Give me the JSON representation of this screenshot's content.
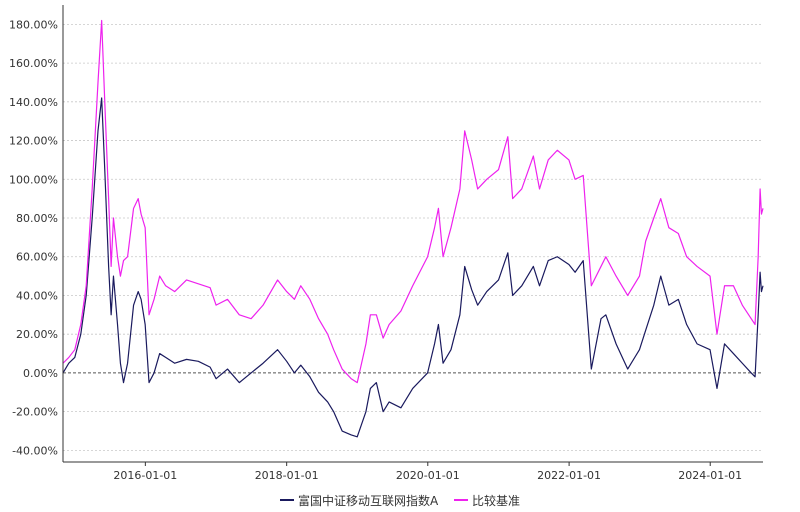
{
  "chart_data": {
    "type": "line",
    "title": "",
    "xlabel": "",
    "ylabel": "",
    "x_range": [
      "2014-11-01",
      "2024-09-30"
    ],
    "ylim": [
      -0.46,
      1.9
    ],
    "y_ticks": [
      -0.4,
      -0.2,
      0.0,
      0.2,
      0.4,
      0.6,
      0.8,
      1.0,
      1.2,
      1.4,
      1.6,
      1.8
    ],
    "y_tick_labels": [
      "-40.00%",
      "-20.00%",
      "0.00%",
      "20.00%",
      "40.00%",
      "60.00%",
      "80.00%",
      "100.00%",
      "120.00%",
      "140.00%",
      "160.00%",
      "180.00%"
    ],
    "x_ticks": [
      "2016-01-01",
      "2018-01-01",
      "2020-01-01",
      "2022-01-01",
      "2024-01-01"
    ],
    "x_tick_labels": [
      "2016-01-01",
      "2018-01-01",
      "2020-01-01",
      "2022-01-01",
      "2024-01-01"
    ],
    "grid": "horizontal dashed",
    "zero_line": "dashed",
    "legend_position": "bottom",
    "series": [
      {
        "name": "富国中证移动互联网指数A",
        "color": "#1a1a5e",
        "points": [
          [
            "2014-11-01",
            0.0
          ],
          [
            "2014-12-01",
            0.05
          ],
          [
            "2015-01-01",
            0.08
          ],
          [
            "2015-02-01",
            0.2
          ],
          [
            "2015-03-01",
            0.4
          ],
          [
            "2015-04-01",
            0.8
          ],
          [
            "2015-05-01",
            1.25
          ],
          [
            "2015-05-20",
            1.42
          ],
          [
            "2015-06-05",
            1.05
          ],
          [
            "2015-06-25",
            0.55
          ],
          [
            "2015-07-08",
            0.3
          ],
          [
            "2015-07-20",
            0.5
          ],
          [
            "2015-08-10",
            0.25
          ],
          [
            "2015-08-25",
            0.05
          ],
          [
            "2015-09-10",
            -0.05
          ],
          [
            "2015-10-01",
            0.05
          ],
          [
            "2015-11-01",
            0.35
          ],
          [
            "2015-11-25",
            0.42
          ],
          [
            "2015-12-10",
            0.38
          ],
          [
            "2015-12-31",
            0.25
          ],
          [
            "2016-01-20",
            -0.05
          ],
          [
            "2016-02-15",
            0.0
          ],
          [
            "2016-03-15",
            0.1
          ],
          [
            "2016-04-15",
            0.08
          ],
          [
            "2016-06-01",
            0.05
          ],
          [
            "2016-08-01",
            0.07
          ],
          [
            "2016-10-01",
            0.06
          ],
          [
            "2016-12-01",
            0.03
          ],
          [
            "2017-01-01",
            -0.03
          ],
          [
            "2017-03-01",
            0.02
          ],
          [
            "2017-05-01",
            -0.05
          ],
          [
            "2017-07-01",
            0.0
          ],
          [
            "2017-09-01",
            0.05
          ],
          [
            "2017-11-15",
            0.12
          ],
          [
            "2018-01-01",
            0.06
          ],
          [
            "2018-02-10",
            0.0
          ],
          [
            "2018-03-15",
            0.04
          ],
          [
            "2018-05-01",
            -0.02
          ],
          [
            "2018-06-15",
            -0.1
          ],
          [
            "2018-08-01",
            -0.15
          ],
          [
            "2018-09-01",
            -0.2
          ],
          [
            "2018-10-15",
            -0.3
          ],
          [
            "2018-12-01",
            -0.32
          ],
          [
            "2019-01-01",
            -0.33
          ],
          [
            "2019-02-15",
            -0.2
          ],
          [
            "2019-03-10",
            -0.08
          ],
          [
            "2019-04-10",
            -0.05
          ],
          [
            "2019-05-15",
            -0.2
          ],
          [
            "2019-06-15",
            -0.15
          ],
          [
            "2019-08-15",
            -0.18
          ],
          [
            "2019-10-15",
            -0.08
          ],
          [
            "2019-12-31",
            0.0
          ],
          [
            "2020-02-05",
            0.15
          ],
          [
            "2020-02-25",
            0.25
          ],
          [
            "2020-03-20",
            0.05
          ],
          [
            "2020-04-30",
            0.12
          ],
          [
            "2020-06-15",
            0.3
          ],
          [
            "2020-07-10",
            0.55
          ],
          [
            "2020-08-15",
            0.43
          ],
          [
            "2020-09-15",
            0.35
          ],
          [
            "2020-11-01",
            0.42
          ],
          [
            "2021-01-01",
            0.48
          ],
          [
            "2021-02-18",
            0.62
          ],
          [
            "2021-03-15",
            0.4
          ],
          [
            "2021-05-01",
            0.45
          ],
          [
            "2021-06-30",
            0.55
          ],
          [
            "2021-08-01",
            0.45
          ],
          [
            "2021-09-15",
            0.58
          ],
          [
            "2021-11-01",
            0.6
          ],
          [
            "2021-12-31",
            0.56
          ],
          [
            "2022-02-01",
            0.52
          ],
          [
            "2022-03-15",
            0.58
          ],
          [
            "2022-04-26",
            0.02
          ],
          [
            "2022-06-15",
            0.28
          ],
          [
            "2022-07-10",
            0.3
          ],
          [
            "2022-09-01",
            0.15
          ],
          [
            "2022-10-31",
            0.02
          ],
          [
            "2022-12-31",
            0.12
          ],
          [
            "2023-02-01",
            0.22
          ],
          [
            "2023-03-15",
            0.35
          ],
          [
            "2023-04-20",
            0.5
          ],
          [
            "2023-06-01",
            0.35
          ],
          [
            "2023-07-20",
            0.38
          ],
          [
            "2023-09-01",
            0.25
          ],
          [
            "2023-10-25",
            0.15
          ],
          [
            "2023-12-31",
            0.12
          ],
          [
            "2024-02-05",
            -0.08
          ],
          [
            "2024-03-15",
            0.15
          ],
          [
            "2024-04-30",
            0.1
          ],
          [
            "2024-06-15",
            0.05
          ],
          [
            "2024-07-31",
            0.0
          ],
          [
            "2024-08-20",
            -0.02
          ],
          [
            "2024-09-05",
            0.3
          ],
          [
            "2024-09-15",
            0.52
          ],
          [
            "2024-09-22",
            0.42
          ],
          [
            "2024-09-30",
            0.45
          ]
        ]
      },
      {
        "name": "比较基准",
        "color": "#ee22ee",
        "points": [
          [
            "2014-11-01",
            0.05
          ],
          [
            "2014-12-01",
            0.08
          ],
          [
            "2015-01-01",
            0.12
          ],
          [
            "2015-02-01",
            0.25
          ],
          [
            "2015-03-01",
            0.45
          ],
          [
            "2015-04-01",
            0.95
          ],
          [
            "2015-05-01",
            1.5
          ],
          [
            "2015-05-20",
            1.82
          ],
          [
            "2015-06-05",
            1.4
          ],
          [
            "2015-06-25",
            0.9
          ],
          [
            "2015-07-08",
            0.55
          ],
          [
            "2015-07-20",
            0.8
          ],
          [
            "2015-08-10",
            0.6
          ],
          [
            "2015-08-25",
            0.5
          ],
          [
            "2015-09-10",
            0.58
          ],
          [
            "2015-10-01",
            0.6
          ],
          [
            "2015-11-01",
            0.85
          ],
          [
            "2015-11-25",
            0.9
          ],
          [
            "2015-12-10",
            0.82
          ],
          [
            "2015-12-31",
            0.75
          ],
          [
            "2016-01-20",
            0.3
          ],
          [
            "2016-02-15",
            0.38
          ],
          [
            "2016-03-15",
            0.5
          ],
          [
            "2016-04-15",
            0.45
          ],
          [
            "2016-06-01",
            0.42
          ],
          [
            "2016-08-01",
            0.48
          ],
          [
            "2016-10-01",
            0.46
          ],
          [
            "2016-12-01",
            0.44
          ],
          [
            "2017-01-01",
            0.35
          ],
          [
            "2017-03-01",
            0.38
          ],
          [
            "2017-05-01",
            0.3
          ],
          [
            "2017-07-01",
            0.28
          ],
          [
            "2017-09-01",
            0.35
          ],
          [
            "2017-11-15",
            0.48
          ],
          [
            "2018-01-01",
            0.42
          ],
          [
            "2018-02-10",
            0.38
          ],
          [
            "2018-03-15",
            0.45
          ],
          [
            "2018-05-01",
            0.38
          ],
          [
            "2018-06-15",
            0.28
          ],
          [
            "2018-08-01",
            0.2
          ],
          [
            "2018-09-01",
            0.12
          ],
          [
            "2018-10-15",
            0.02
          ],
          [
            "2018-12-01",
            -0.03
          ],
          [
            "2019-01-01",
            -0.05
          ],
          [
            "2019-02-15",
            0.15
          ],
          [
            "2019-03-10",
            0.3
          ],
          [
            "2019-04-10",
            0.3
          ],
          [
            "2019-05-15",
            0.18
          ],
          [
            "2019-06-15",
            0.25
          ],
          [
            "2019-08-15",
            0.32
          ],
          [
            "2019-10-15",
            0.45
          ],
          [
            "2019-12-31",
            0.6
          ],
          [
            "2020-02-05",
            0.75
          ],
          [
            "2020-02-25",
            0.85
          ],
          [
            "2020-03-20",
            0.6
          ],
          [
            "2020-04-30",
            0.75
          ],
          [
            "2020-06-15",
            0.95
          ],
          [
            "2020-07-10",
            1.25
          ],
          [
            "2020-08-15",
            1.1
          ],
          [
            "2020-09-15",
            0.95
          ],
          [
            "2020-11-01",
            1.0
          ],
          [
            "2021-01-01",
            1.05
          ],
          [
            "2021-02-18",
            1.22
          ],
          [
            "2021-03-15",
            0.9
          ],
          [
            "2021-05-01",
            0.95
          ],
          [
            "2021-06-30",
            1.12
          ],
          [
            "2021-08-01",
            0.95
          ],
          [
            "2021-09-15",
            1.1
          ],
          [
            "2021-11-01",
            1.15
          ],
          [
            "2021-12-31",
            1.1
          ],
          [
            "2022-02-01",
            1.0
          ],
          [
            "2022-03-15",
            1.02
          ],
          [
            "2022-04-26",
            0.45
          ],
          [
            "2022-06-15",
            0.55
          ],
          [
            "2022-07-10",
            0.6
          ],
          [
            "2022-09-01",
            0.5
          ],
          [
            "2022-10-31",
            0.4
          ],
          [
            "2022-12-31",
            0.5
          ],
          [
            "2023-02-01",
            0.68
          ],
          [
            "2023-03-15",
            0.8
          ],
          [
            "2023-04-20",
            0.9
          ],
          [
            "2023-06-01",
            0.75
          ],
          [
            "2023-07-20",
            0.72
          ],
          [
            "2023-09-01",
            0.6
          ],
          [
            "2023-10-25",
            0.55
          ],
          [
            "2023-12-31",
            0.5
          ],
          [
            "2024-02-05",
            0.2
          ],
          [
            "2024-03-15",
            0.45
          ],
          [
            "2024-04-30",
            0.45
          ],
          [
            "2024-06-15",
            0.35
          ],
          [
            "2024-07-31",
            0.28
          ],
          [
            "2024-08-20",
            0.25
          ],
          [
            "2024-09-05",
            0.6
          ],
          [
            "2024-09-15",
            0.95
          ],
          [
            "2024-09-22",
            0.82
          ],
          [
            "2024-09-30",
            0.85
          ]
        ]
      }
    ]
  }
}
